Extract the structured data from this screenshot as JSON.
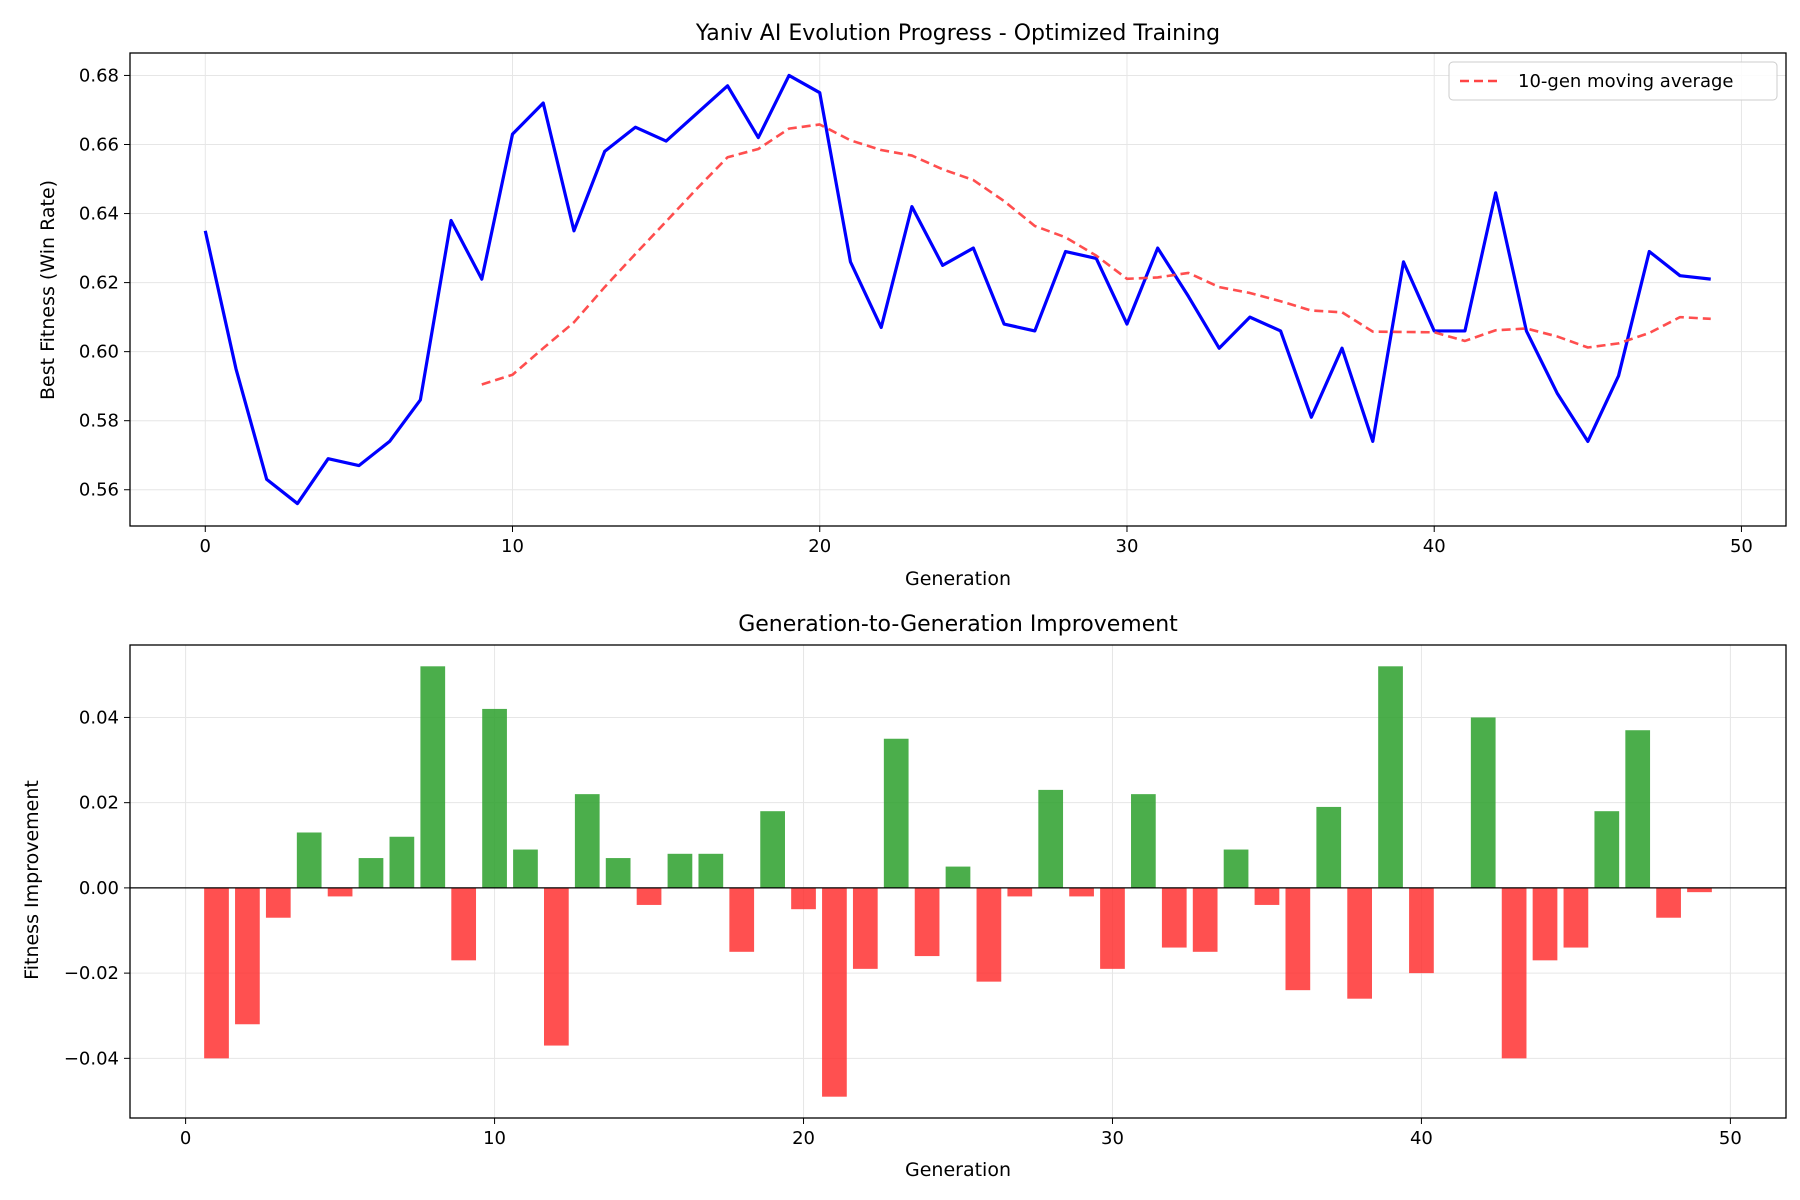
{
  "chart_data": [
    {
      "type": "line",
      "title": "Yaniv AI Evolution Progress - Optimized Training",
      "xlabel": "Generation",
      "ylabel": "Best Fitness (Win Rate)",
      "xlim": [
        -2.45,
        51.45
      ],
      "ylim": [
        0.5495,
        0.6865
      ],
      "xticks": [
        0,
        10,
        20,
        30,
        40,
        50
      ],
      "yticks": [
        0.56,
        0.58,
        0.6,
        0.62,
        0.64,
        0.66,
        0.68
      ],
      "ytick_labels": [
        "0.56",
        "0.58",
        "0.60",
        "0.62",
        "0.64",
        "0.66",
        "0.68"
      ],
      "grid": true,
      "legend": "top-right",
      "series": [
        {
          "name": "",
          "color": "#0000ff",
          "style": "solid",
          "x": [
            0,
            1,
            2,
            3,
            4,
            5,
            6,
            7,
            8,
            9,
            10,
            11,
            12,
            13,
            14,
            15,
            16,
            17,
            18,
            19,
            20,
            21,
            22,
            23,
            24,
            25,
            26,
            27,
            28,
            29,
            30,
            31,
            32,
            33,
            34,
            35,
            36,
            37,
            38,
            39,
            40,
            41,
            42,
            43,
            44,
            45,
            46,
            47,
            48,
            49
          ],
          "y": [
            0.635,
            0.595,
            0.563,
            0.556,
            0.569,
            0.567,
            0.574,
            0.586,
            0.638,
            0.621,
            0.663,
            0.672,
            0.635,
            0.658,
            0.665,
            0.661,
            0.669,
            0.677,
            0.662,
            0.68,
            0.675,
            0.626,
            0.607,
            0.642,
            0.625,
            0.63,
            0.608,
            0.606,
            0.629,
            0.627,
            0.608,
            0.63,
            0.616,
            0.601,
            0.61,
            0.606,
            0.581,
            0.601,
            0.574,
            0.626,
            0.606,
            0.606,
            0.646,
            0.606,
            0.588,
            0.574,
            0.593,
            0.629,
            0.622,
            0.621
          ]
        },
        {
          "name": "10-gen moving average",
          "color": "#ff4444",
          "style": "dashed",
          "x": [
            9,
            10,
            11,
            12,
            13,
            14,
            15,
            16,
            17,
            18,
            19,
            20,
            21,
            22,
            23,
            24,
            25,
            26,
            27,
            28,
            29,
            30,
            31,
            32,
            33,
            34,
            35,
            36,
            37,
            38,
            39,
            40,
            41,
            42,
            43,
            44,
            45,
            46,
            47,
            48,
            49
          ],
          "y": [
            0.5905,
            0.5933,
            0.601,
            0.6085,
            0.6187,
            0.6283,
            0.6377,
            0.6472,
            0.6563,
            0.6587,
            0.6646,
            0.6658,
            0.6612,
            0.6584,
            0.6568,
            0.6528,
            0.6497,
            0.6436,
            0.6364,
            0.6331,
            0.6278,
            0.6211,
            0.6215,
            0.6228,
            0.6187,
            0.617,
            0.6146,
            0.6119,
            0.6114,
            0.6058,
            0.6057,
            0.6056,
            0.6031,
            0.6062,
            0.6067,
            0.6044,
            0.6012,
            0.6024,
            0.6054,
            0.61,
            0.6095
          ]
        }
      ]
    },
    {
      "type": "bar",
      "title": "Generation-to-Generation Improvement",
      "xlabel": "Generation",
      "ylabel": "Fitness Improvement",
      "xlim": [
        -1.8,
        51.8
      ],
      "ylim": [
        -0.054,
        0.057
      ],
      "xticks": [
        0,
        10,
        20,
        30,
        40,
        50
      ],
      "yticks": [
        -0.04,
        -0.02,
        0.0,
        0.02,
        0.04
      ],
      "ytick_labels": [
        "−0.04",
        "−0.02",
        "0.00",
        "0.02",
        "0.04"
      ],
      "grid": true,
      "positive_color": "#2ca02c",
      "negative_color": "#ff2a2a",
      "bar_width": 0.8,
      "x": [
        1,
        2,
        3,
        4,
        5,
        6,
        7,
        8,
        9,
        10,
        11,
        12,
        13,
        14,
        15,
        16,
        17,
        18,
        19,
        20,
        21,
        22,
        23,
        24,
        25,
        26,
        27,
        28,
        29,
        30,
        31,
        32,
        33,
        34,
        35,
        36,
        37,
        38,
        39,
        40,
        41,
        42,
        43,
        44,
        45,
        46,
        47,
        48,
        49
      ],
      "values": [
        -0.04,
        -0.032,
        -0.007,
        0.013,
        -0.002,
        0.007,
        0.012,
        0.052,
        -0.017,
        0.042,
        0.009,
        -0.037,
        0.022,
        0.007,
        -0.004,
        0.008,
        0.008,
        -0.015,
        0.018,
        -0.005,
        -0.049,
        -0.019,
        0.035,
        -0.016,
        0.005,
        -0.022,
        -0.002,
        0.023,
        -0.002,
        -0.019,
        0.022,
        -0.014,
        -0.015,
        0.009,
        -0.004,
        -0.024,
        0.019,
        -0.026,
        0.052,
        -0.02,
        0.0,
        0.04,
        -0.04,
        -0.017,
        -0.014,
        0.018,
        0.037,
        -0.007,
        -0.001
      ]
    }
  ]
}
